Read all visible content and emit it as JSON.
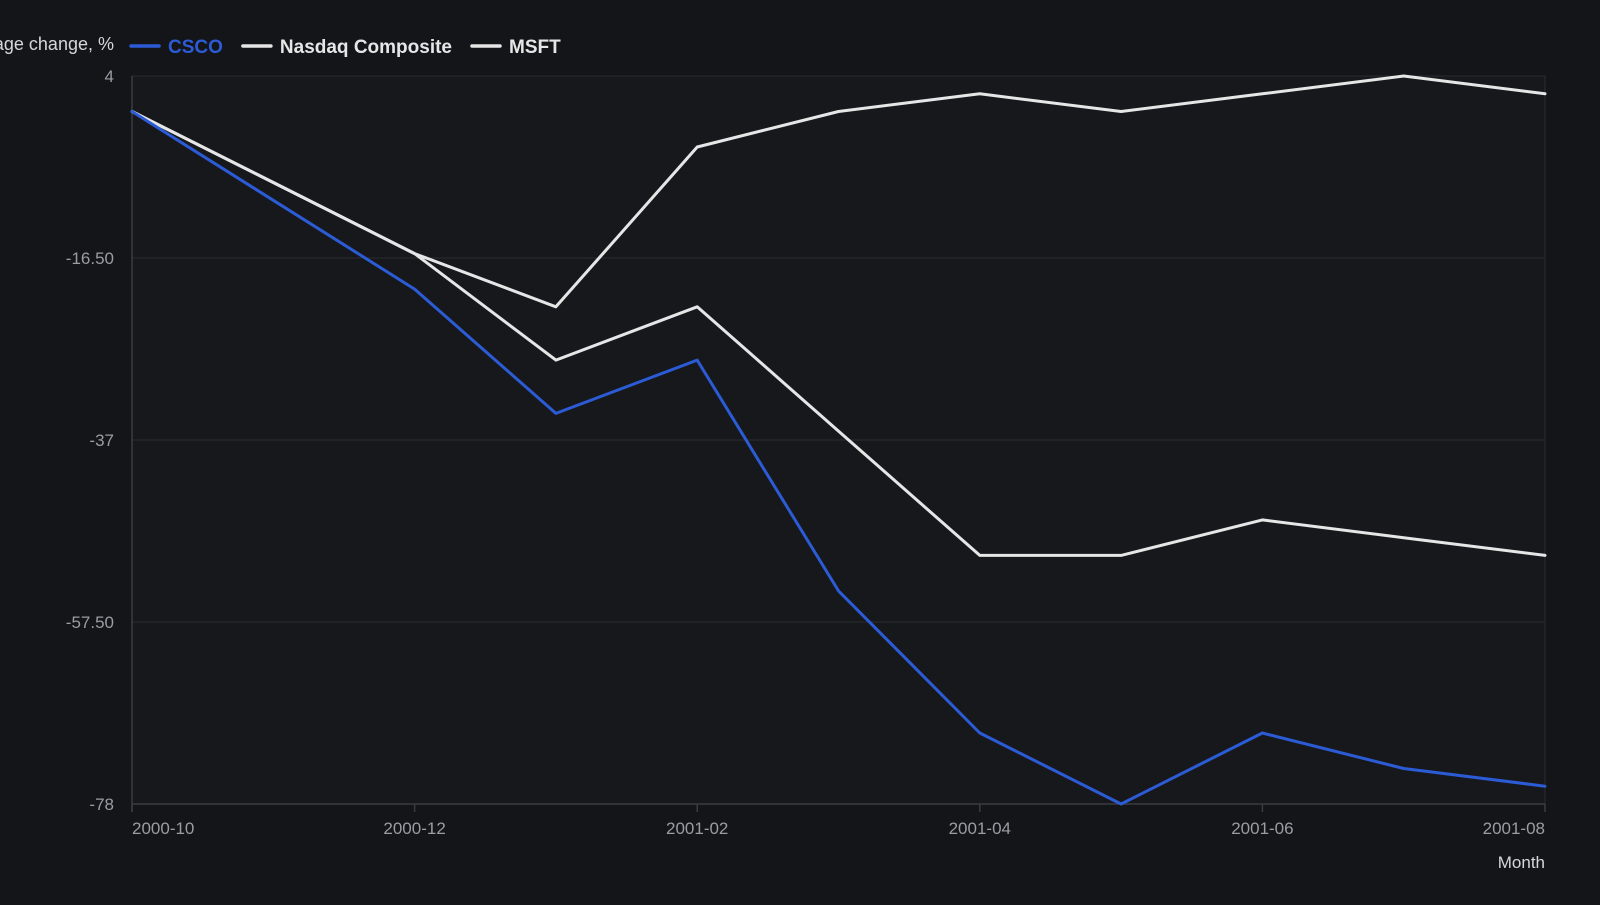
{
  "legend": {
    "title": "Percentage change, %"
  },
  "colors": {
    "background": "#141519",
    "plot_background": "#16181c",
    "gridline": "#2a2c31",
    "axis_line": "#3a3c42",
    "CSCO": "#2c5bd6",
    "Nasdaq Composite": "#e6e6e6",
    "MSFT": "#e6e6e6"
  },
  "chart_data": {
    "type": "line",
    "title": "",
    "xlabel": "Month",
    "ylabel": "Percentage change, %",
    "x": [
      "2000-10",
      "2000-11",
      "2000-12",
      "2001-01",
      "2001-02",
      "2001-03",
      "2001-04",
      "2001-05",
      "2001-06",
      "2001-07",
      "2001-08"
    ],
    "x_tick_labels": [
      "2000-10",
      "2000-12",
      "2001-02",
      "2001-04",
      "2001-06",
      "2001-08"
    ],
    "y_tick_labels": [
      "4",
      "-16.50",
      "-37",
      "-57.50",
      "-78"
    ],
    "ylim": [
      -78,
      4
    ],
    "grid": true,
    "legend_position": "top-left",
    "series": [
      {
        "name": "CSCO",
        "values": [
          0,
          -10,
          -20,
          -34,
          -28,
          -54,
          -70,
          -78,
          -70,
          -74,
          -76
        ]
      },
      {
        "name": "Nasdaq Composite",
        "values": [
          0,
          -8,
          -16,
          -22,
          -4,
          0,
          2,
          0,
          2,
          4,
          2
        ]
      },
      {
        "name": "MSFT",
        "values": [
          0,
          -8,
          -16,
          -28,
          -22,
          -36,
          -50,
          -50,
          -46,
          -48,
          -50
        ]
      }
    ]
  }
}
